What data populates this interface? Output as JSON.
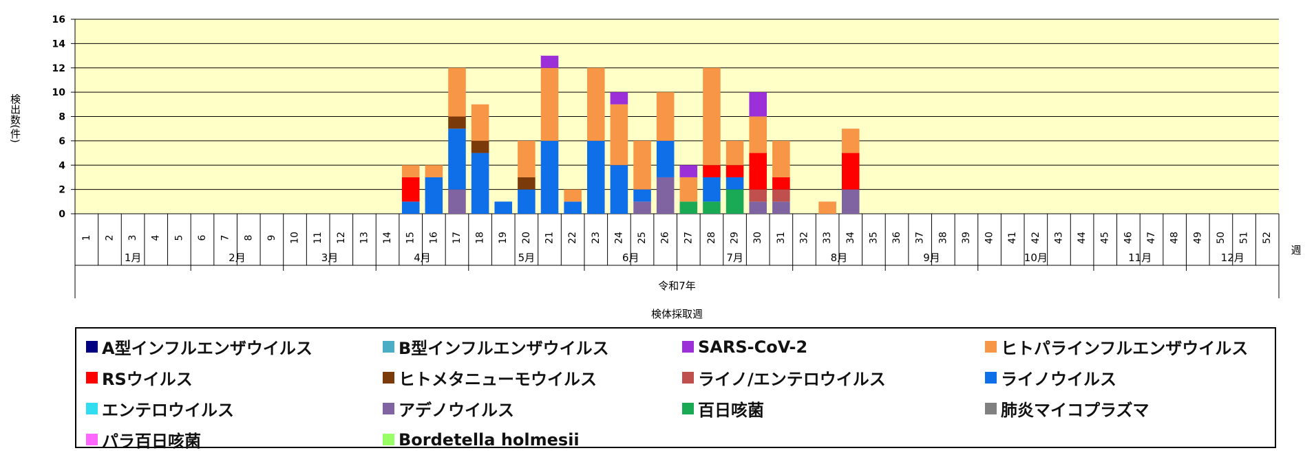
{
  "chart_data": {
    "type": "bar",
    "stacked": true,
    "ylabel": "検出数(件)",
    "xlabel": "検体採取週",
    "year_label": "令和7年",
    "week_unit": "週",
    "ylim": [
      0,
      16
    ],
    "yticks": [
      "0",
      "2",
      "4",
      "6",
      "8",
      "10",
      "12",
      "14",
      "16"
    ],
    "grid": true,
    "plot_background": "#ffffc8",
    "legend_position": "bottom",
    "categories": [
      "1",
      "2",
      "3",
      "4",
      "5",
      "6",
      "7",
      "8",
      "9",
      "10",
      "11",
      "12",
      "13",
      "14",
      "15",
      "16",
      "17",
      "18",
      "19",
      "20",
      "21",
      "22",
      "23",
      "24",
      "25",
      "26",
      "27",
      "28",
      "29",
      "30",
      "31",
      "32",
      "33",
      "34",
      "35",
      "36",
      "37",
      "38",
      "39",
      "40",
      "41",
      "42",
      "43",
      "44",
      "45",
      "46",
      "47",
      "48",
      "49",
      "50",
      "51",
      "52"
    ],
    "months": [
      {
        "label": "1月",
        "start": 1,
        "end": 5
      },
      {
        "label": "2月",
        "start": 6,
        "end": 9
      },
      {
        "label": "3月",
        "start": 10,
        "end": 13
      },
      {
        "label": "4月",
        "start": 14,
        "end": 17
      },
      {
        "label": "5月",
        "start": 18,
        "end": 22
      },
      {
        "label": "6月",
        "start": 23,
        "end": 26
      },
      {
        "label": "7月",
        "start": 27,
        "end": 31
      },
      {
        "label": "8月",
        "start": 32,
        "end": 35
      },
      {
        "label": "9月",
        "start": 36,
        "end": 39
      },
      {
        "label": "10月",
        "start": 40,
        "end": 44
      },
      {
        "label": "11月",
        "start": 45,
        "end": 48
      },
      {
        "label": "12月",
        "start": 49,
        "end": 52
      }
    ],
    "series": [
      {
        "name": "百日咳菌",
        "color": "#1aaa55",
        "values": {
          "27": 1,
          "28": 1,
          "29": 2
        }
      },
      {
        "name": "アデノウイルス",
        "color": "#8064a2",
        "values": {
          "17": 2,
          "25": 1,
          "26": 3,
          "30": 1,
          "31": 1,
          "34": 2
        }
      },
      {
        "name": "ライノ/エンテロウイルス",
        "color": "#c0504d",
        "values": {
          "30": 1,
          "31": 1
        }
      },
      {
        "name": "ライノウイルス",
        "color": "#0f6fe8",
        "values": {
          "15": 1,
          "16": 3,
          "17": 5,
          "18": 5,
          "19": 1,
          "20": 2,
          "21": 6,
          "22": 1,
          "23": 6,
          "24": 4,
          "25": 1,
          "26": 3,
          "28": 2,
          "29": 1
        }
      },
      {
        "name": "RSウイルス",
        "color": "#ff0000",
        "values": {
          "15": 2,
          "28": 1,
          "29": 1,
          "30": 3,
          "31": 1,
          "34": 3
        }
      },
      {
        "name": "ヒトメタニューモウイルス",
        "color": "#7a3a0a",
        "values": {
          "17": 1,
          "18": 1,
          "20": 1
        }
      },
      {
        "name": "ヒトパラインフルエンザウイルス",
        "color": "#f79646",
        "values": {
          "15": 1,
          "16": 1,
          "17": 4,
          "18": 3,
          "20": 3,
          "21": 6,
          "22": 1,
          "23": 6,
          "24": 5,
          "25": 4,
          "26": 4,
          "27": 2,
          "28": 8,
          "29": 2,
          "30": 3,
          "31": 3,
          "33": 1,
          "34": 2
        }
      },
      {
        "name": "SARS-CoV-2",
        "color": "#9b30d9",
        "values": {
          "21": 1,
          "24": 1,
          "27": 1,
          "30": 2
        }
      }
    ],
    "legend": [
      {
        "name": "A型インフルエンザウイルス",
        "color": "#000080"
      },
      {
        "name": "B型インフルエンザウイルス",
        "color": "#4bacc6"
      },
      {
        "name": "SARS-CoV-2",
        "color": "#9b30d9"
      },
      {
        "name": "ヒトパラインフルエンザウイルス",
        "color": "#f79646"
      },
      {
        "name": "RSウイルス",
        "color": "#ff0000"
      },
      {
        "name": "ヒトメタニューモウイルス",
        "color": "#7a3a0a"
      },
      {
        "name": "ライノ/エンテロウイルス",
        "color": "#c0504d"
      },
      {
        "name": "ライノウイルス",
        "color": "#0f6fe8"
      },
      {
        "name": "エンテロウイルス",
        "color": "#33ddf0"
      },
      {
        "name": "アデノウイルス",
        "color": "#8064a2"
      },
      {
        "name": "百日咳菌",
        "color": "#1aaa55"
      },
      {
        "name": "肺炎マイコプラズマ",
        "color": "#808080"
      },
      {
        "name": "パラ百日咳菌",
        "color": "#ff66ff"
      },
      {
        "name": "Bordetella holmesii",
        "color": "#99ff66"
      }
    ]
  }
}
